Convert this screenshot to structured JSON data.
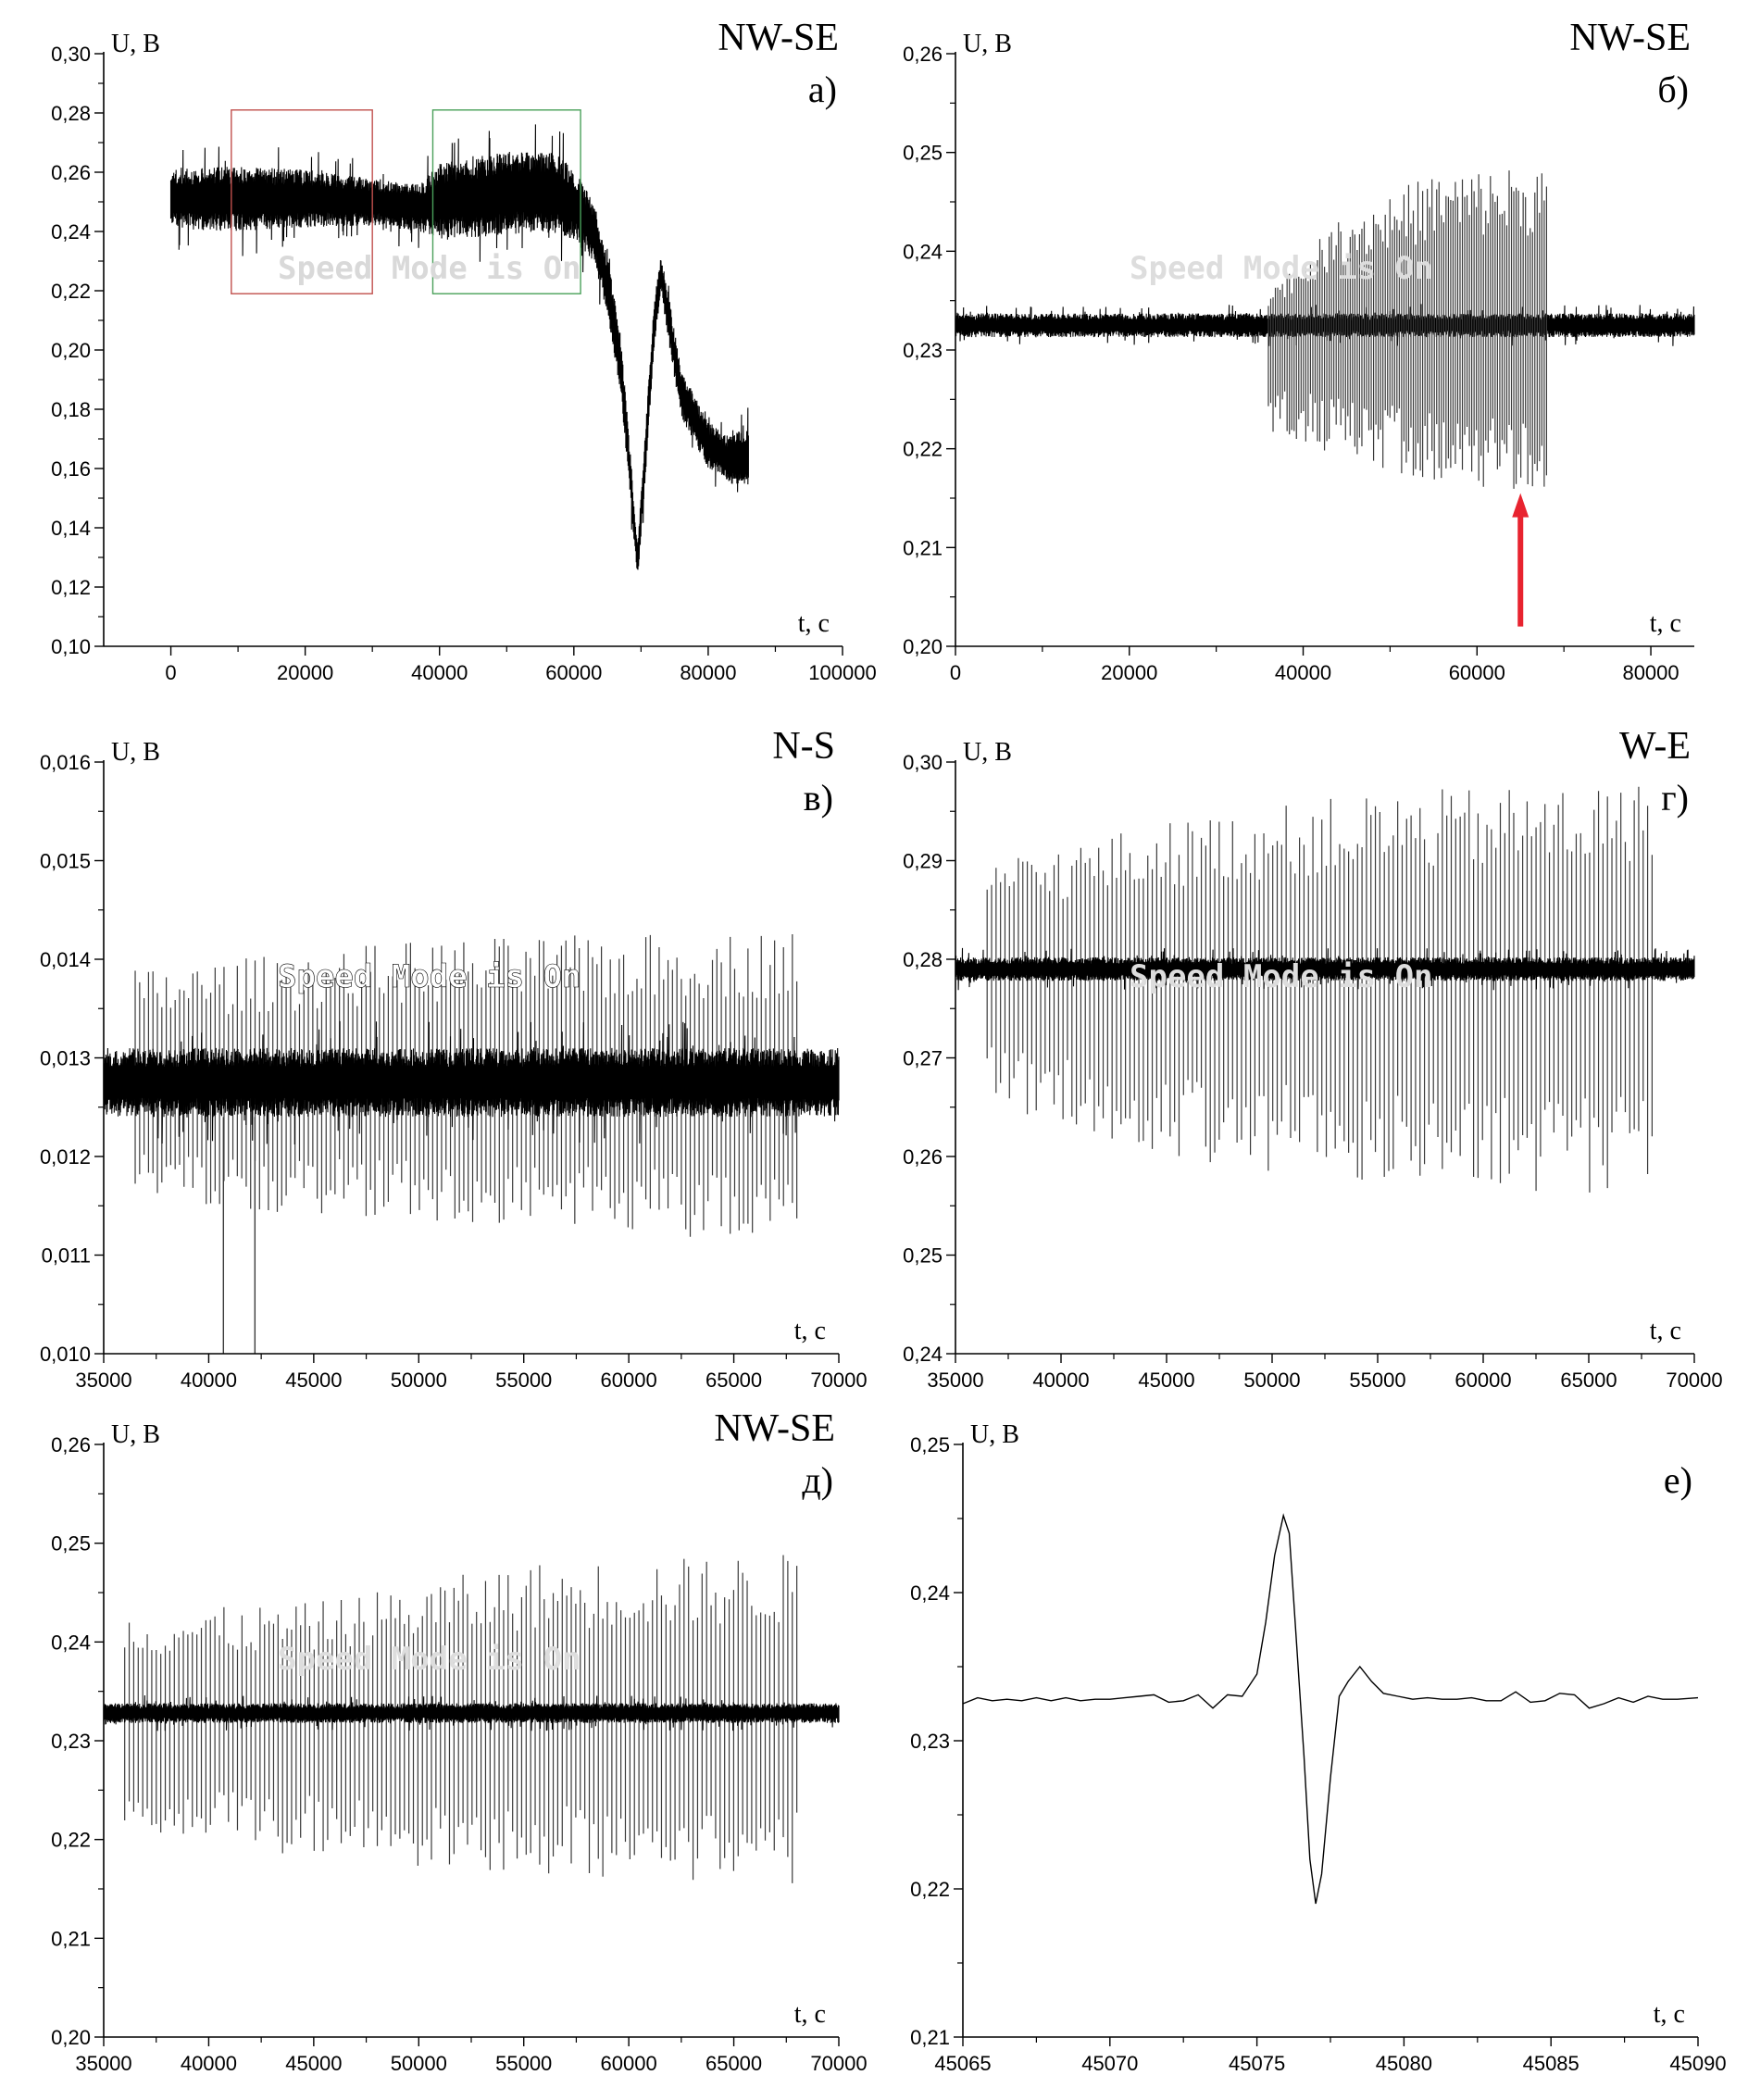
{
  "figure": {
    "watermark_text": "Speed Mode is On"
  },
  "chart_data": [
    {
      "panel": "a",
      "type": "line",
      "orientation_label": "NW-SE",
      "panel_label": "а)",
      "ylabel": "U, В",
      "xlabel": "t, с",
      "xlim": [
        -10000,
        100000
      ],
      "ylim": [
        0.1,
        0.3
      ],
      "xticks": [
        0,
        20000,
        40000,
        60000,
        80000,
        100000
      ],
      "xtick_labels": [
        "0",
        "20000",
        "40000",
        "60000",
        "80000",
        "100000"
      ],
      "yticks": [
        0.1,
        0.12,
        0.14,
        0.16,
        0.18,
        0.2,
        0.22,
        0.24,
        0.26,
        0.28,
        0.3
      ],
      "ytick_labels": [
        "0,10",
        "0,12",
        "0,14",
        "0,16",
        "0,18",
        "0,20",
        "0,22",
        "0,24",
        "0,26",
        "0,28",
        "0,30"
      ],
      "watermark_color": "#d9d9d9",
      "series": [
        {
          "style": "noise-band",
          "points": [
            [
              0,
              0.251,
              0.01
            ],
            [
              8000,
              0.251,
              0.011
            ],
            [
              20000,
              0.251,
              0.01
            ],
            [
              30000,
              0.25,
              0.008
            ],
            [
              37000,
              0.248,
              0.008
            ],
            [
              40000,
              0.25,
              0.013
            ],
            [
              50000,
              0.253,
              0.014
            ],
            [
              57000,
              0.253,
              0.014
            ],
            [
              60000,
              0.249,
              0.012
            ],
            [
              63000,
              0.24,
              0.01
            ],
            [
              65000,
              0.222,
              0.01
            ],
            [
              67000,
              0.195,
              0.01
            ],
            [
              68500,
              0.155,
              0.008
            ],
            [
              69500,
              0.128,
              0.006
            ],
            [
              70500,
              0.16,
              0.008
            ],
            [
              72000,
              0.21,
              0.008
            ],
            [
              73000,
              0.226,
              0.006
            ],
            [
              74000,
              0.212,
              0.008
            ],
            [
              76000,
              0.185,
              0.008
            ],
            [
              80000,
              0.168,
              0.008
            ],
            [
              83000,
              0.163,
              0.008
            ],
            [
              86000,
              0.164,
              0.01
            ]
          ]
        }
      ],
      "highlight_boxes": [
        {
          "x": [
            9000,
            30000
          ],
          "y": [
            0.219,
            0.281
          ],
          "color": "#c0504d"
        },
        {
          "x": [
            39000,
            61000
          ],
          "y": [
            0.219,
            0.281
          ],
          "color": "#4aa05a"
        }
      ]
    },
    {
      "panel": "b",
      "type": "line",
      "orientation_label": "NW-SE",
      "panel_label": "б)",
      "ylabel": "U, В",
      "xlabel": "t, с",
      "xlim": [
        0,
        85000
      ],
      "ylim": [
        0.2,
        0.26
      ],
      "xticks": [
        0,
        20000,
        40000,
        60000,
        80000
      ],
      "xtick_labels": [
        "0",
        "20000",
        "40000",
        "60000",
        "80000"
      ],
      "yticks": [
        0.2,
        0.21,
        0.22,
        0.23,
        0.24,
        0.25,
        0.26
      ],
      "ytick_labels": [
        "0,20",
        "0,21",
        "0,22",
        "0,23",
        "0,24",
        "0,25",
        "0,26"
      ],
      "watermark_color": "#dddddd",
      "series": [
        {
          "style": "noise-band",
          "points": [
            [
              0,
              0.2325,
              0.0012
            ],
            [
              85000,
              0.2325,
              0.0012
            ]
          ]
        },
        {
          "style": "spikes",
          "baseline": 0.2325,
          "x_range": [
            36000,
            68000
          ],
          "count": 120,
          "upper_envelope": [
            [
              36000,
              0.236
            ],
            [
              45000,
              0.244
            ],
            [
              55000,
              0.248
            ],
            [
              68000,
              0.249
            ]
          ],
          "lower_envelope": [
            [
              36000,
              0.221
            ],
            [
              45000,
              0.219
            ],
            [
              55000,
              0.2165
            ],
            [
              68000,
              0.2155
            ]
          ]
        }
      ],
      "annotations": [
        {
          "type": "arrow",
          "x": 65000,
          "y_from": 0.202,
          "y_to": 0.2155,
          "color": "#e8232f"
        }
      ]
    },
    {
      "panel": "c",
      "type": "line",
      "orientation_label": "N-S",
      "panel_label": "в)",
      "ylabel": "U, В",
      "xlabel": "t, с",
      "xlim": [
        35000,
        70000
      ],
      "ylim": [
        0.01,
        0.016
      ],
      "xticks": [
        35000,
        40000,
        45000,
        50000,
        55000,
        60000,
        65000,
        70000
      ],
      "xtick_labels": [
        "35000",
        "40000",
        "45000",
        "50000",
        "55000",
        "60000",
        "65000",
        "70000"
      ],
      "yticks": [
        0.01,
        0.011,
        0.012,
        0.013,
        0.014,
        0.015,
        0.016
      ],
      "ytick_labels": [
        "0,010",
        "0,011",
        "0,012",
        "0,013",
        "0,014",
        "0,015",
        "0,016"
      ],
      "watermark_color": "#ffffff",
      "series": [
        {
          "style": "spikes",
          "baseline": 0.01275,
          "x_range": [
            36500,
            68000
          ],
          "count": 150,
          "upper_envelope": [
            [
              36500,
              0.0139
            ],
            [
              50000,
              0.0142
            ],
            [
              68000,
              0.0143
            ]
          ],
          "lower_envelope": [
            [
              36500,
              0.0115
            ],
            [
              50000,
              0.0113
            ],
            [
              68000,
              0.0111
            ]
          ]
        },
        {
          "style": "noise-band",
          "points": [
            [
              35000,
              0.01275,
              0.00035
            ],
            [
              70000,
              0.01275,
              0.00035
            ]
          ]
        }
      ],
      "annotations": [
        {
          "type": "deep-spike",
          "x": 40700,
          "y_from": 0.0124,
          "y_to": 0.01
        },
        {
          "type": "deep-spike",
          "x": 42200,
          "y_from": 0.0124,
          "y_to": 0.01
        }
      ]
    },
    {
      "panel": "d",
      "type": "line",
      "orientation_label": "W-E",
      "panel_label": "г)",
      "ylabel": "U, В",
      "xlabel": "t, с",
      "xlim": [
        35000,
        70000
      ],
      "ylim": [
        0.24,
        0.3
      ],
      "xticks": [
        35000,
        40000,
        45000,
        50000,
        55000,
        60000,
        65000,
        70000
      ],
      "xtick_labels": [
        "35000",
        "40000",
        "45000",
        "50000",
        "55000",
        "60000",
        "65000",
        "70000"
      ],
      "yticks": [
        0.24,
        0.25,
        0.26,
        0.27,
        0.28,
        0.29,
        0.3
      ],
      "ytick_labels": [
        "0,24",
        "0,25",
        "0,26",
        "0,27",
        "0,28",
        "0,29",
        "0,30"
      ],
      "watermark_color": "#dddddd",
      "series": [
        {
          "style": "spikes",
          "baseline": 0.279,
          "x_range": [
            36500,
            68000
          ],
          "count": 150,
          "upper_envelope": [
            [
              36500,
              0.29
            ],
            [
              45000,
              0.294
            ],
            [
              55000,
              0.297
            ],
            [
              68000,
              0.298
            ]
          ],
          "lower_envelope": [
            [
              36500,
              0.265
            ],
            [
              45000,
              0.26
            ],
            [
              55000,
              0.257
            ],
            [
              68000,
              0.256
            ]
          ]
        },
        {
          "style": "noise-band",
          "points": [
            [
              35000,
              0.279,
              0.0012
            ],
            [
              70000,
              0.279,
              0.0012
            ]
          ]
        }
      ]
    },
    {
      "panel": "e",
      "type": "line",
      "orientation_label": "NW-SE",
      "panel_label": "д)",
      "ylabel": "U, В",
      "xlabel": "t, с",
      "xlim": [
        35000,
        70000
      ],
      "ylim": [
        0.2,
        0.26
      ],
      "xticks": [
        35000,
        40000,
        45000,
        50000,
        55000,
        60000,
        65000,
        70000
      ],
      "xtick_labels": [
        "35000",
        "40000",
        "45000",
        "50000",
        "55000",
        "60000",
        "65000",
        "70000"
      ],
      "yticks": [
        0.2,
        0.21,
        0.22,
        0.23,
        0.24,
        0.25,
        0.26
      ],
      "ytick_labels": [
        "0,20",
        "0,21",
        "0,22",
        "0,23",
        "0,24",
        "0,25",
        "0,26"
      ],
      "watermark_color": "#dddddd",
      "series": [
        {
          "style": "spikes",
          "baseline": 0.2328,
          "x_range": [
            36000,
            68000
          ],
          "count": 150,
          "upper_envelope": [
            [
              36000,
              0.243
            ],
            [
              45000,
              0.244
            ],
            [
              55000,
              0.248
            ],
            [
              68000,
              0.249
            ]
          ],
          "lower_envelope": [
            [
              36000,
              0.221
            ],
            [
              45000,
              0.218
            ],
            [
              55000,
              0.2163
            ],
            [
              68000,
              0.2155
            ]
          ]
        },
        {
          "style": "noise-band",
          "points": [
            [
              35000,
              0.2328,
              0.001
            ],
            [
              70000,
              0.2328,
              0.001
            ]
          ]
        }
      ]
    },
    {
      "panel": "f",
      "type": "line",
      "orientation_label": "",
      "panel_label": "е)",
      "ylabel": "U, В",
      "xlabel": "t, с",
      "xlim": [
        45065,
        45090
      ],
      "ylim": [
        0.21,
        0.25
      ],
      "xticks": [
        45065,
        45070,
        45075,
        45080,
        45085,
        45090
      ],
      "xtick_labels": [
        "45065",
        "45070",
        "45075",
        "45080",
        "45085",
        "45090"
      ],
      "yticks": [
        0.21,
        0.22,
        0.23,
        0.24,
        0.25
      ],
      "ytick_labels": [
        "0,21",
        "0,22",
        "0,23",
        "0,24",
        "0,25"
      ],
      "watermark_color": "",
      "series": [
        {
          "style": "line",
          "x": [
            45065,
            45065.5,
            45066,
            45066.5,
            45067,
            45067.5,
            45068,
            45068.5,
            45069,
            45069.5,
            45070,
            45070.5,
            45071,
            45071.5,
            45072,
            45072.5,
            45073,
            45073.5,
            45074,
            45074.5,
            45075,
            45075.3,
            45075.6,
            45075.9,
            45076.1,
            45076.3,
            45076.6,
            45076.8,
            45077,
            45077.2,
            45077.5,
            45077.8,
            45078.1,
            45078.5,
            45078.9,
            45079.3,
            45079.8,
            45080.3,
            45080.8,
            45081.3,
            45081.8,
            45082.3,
            45082.8,
            45083.3,
            45083.8,
            45084.3,
            45084.8,
            45085.3,
            45085.8,
            45086.3,
            45086.8,
            45087.3,
            45087.8,
            45088.3,
            45088.8,
            45089.3,
            45090
          ],
          "y": [
            0.2325,
            0.2329,
            0.2327,
            0.2328,
            0.2327,
            0.2329,
            0.2327,
            0.2329,
            0.2327,
            0.2328,
            0.2328,
            0.2329,
            0.233,
            0.2331,
            0.2326,
            0.2327,
            0.2331,
            0.2322,
            0.2331,
            0.233,
            0.2345,
            0.238,
            0.2425,
            0.2452,
            0.244,
            0.238,
            0.229,
            0.222,
            0.219,
            0.221,
            0.2275,
            0.233,
            0.234,
            0.235,
            0.234,
            0.2332,
            0.233,
            0.2328,
            0.2329,
            0.2328,
            0.2328,
            0.2329,
            0.2327,
            0.2327,
            0.2333,
            0.2326,
            0.2327,
            0.2332,
            0.2331,
            0.2322,
            0.2325,
            0.2329,
            0.2326,
            0.233,
            0.2328,
            0.2328,
            0.2329
          ]
        }
      ]
    }
  ]
}
